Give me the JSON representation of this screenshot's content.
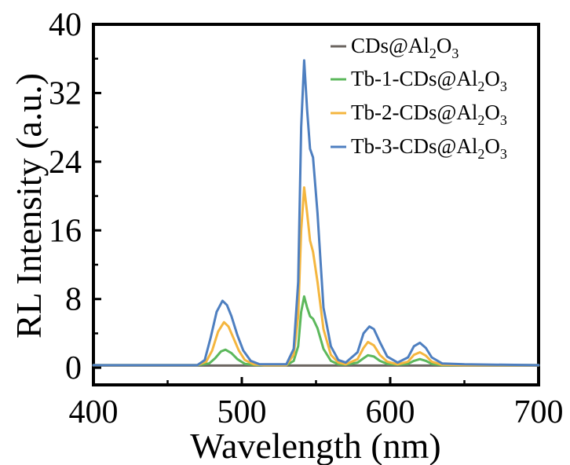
{
  "chart_data": {
    "type": "line",
    "xlabel": "Wavelength (nm)",
    "ylabel": "RL Intensity (a.u.)",
    "xlim": [
      400,
      700
    ],
    "ylim": [
      -2,
      40
    ],
    "xticks": [
      400,
      500,
      600,
      700
    ],
    "yticks": [
      0,
      8,
      16,
      24,
      32,
      40
    ],
    "xtick_labels": [
      "400",
      "500",
      "600",
      "700"
    ],
    "ytick_labels": [
      "0",
      "8",
      "16",
      "24",
      "32",
      "40"
    ],
    "grid": false,
    "legend_position": "top-right",
    "series": [
      {
        "name": "CDs@Al2O3",
        "legend": {
          "base": "CDs@Al",
          "sub1": "2",
          "mid": "O",
          "sub2": "3"
        },
        "color": "#6b6560",
        "x": [
          400,
          420,
          440,
          460,
          480,
          500,
          520,
          540,
          560,
          580,
          600,
          620,
          640,
          660,
          680,
          700
        ],
        "y": [
          0.25,
          0.25,
          0.25,
          0.25,
          0.25,
          0.25,
          0.25,
          0.25,
          0.25,
          0.25,
          0.25,
          0.25,
          0.25,
          0.25,
          0.25,
          0.25
        ]
      },
      {
        "name": "Tb-1-CDs@Al2O3",
        "legend": {
          "base": "Tb-1-CDs@Al",
          "sub1": "2",
          "mid": "O",
          "sub2": "3"
        },
        "color": "#5cb85c",
        "x": [
          400,
          470,
          478,
          482,
          486,
          489,
          493,
          497,
          502,
          510,
          530,
          535,
          538,
          540,
          542,
          544,
          546,
          548,
          551,
          555,
          560,
          565,
          570,
          578,
          582,
          585,
          589,
          593,
          598,
          605,
          612,
          616,
          620,
          624,
          628,
          635,
          650,
          700
        ],
        "y": [
          0.3,
          0.3,
          0.5,
          1.1,
          1.9,
          2.1,
          1.7,
          1.0,
          0.45,
          0.3,
          0.3,
          0.8,
          2.5,
          6.5,
          8.3,
          7.0,
          6.0,
          5.7,
          4.6,
          2.2,
          0.8,
          0.4,
          0.35,
          0.6,
          1.1,
          1.45,
          1.3,
          0.8,
          0.45,
          0.35,
          0.45,
          0.8,
          1.0,
          0.8,
          0.45,
          0.3,
          0.3,
          0.3
        ]
      },
      {
        "name": "Tb-2-CDs@Al2O3",
        "legend": {
          "base": "Tb-2-CDs@Al",
          "sub1": "2",
          "mid": "O",
          "sub2": "3"
        },
        "color": "#f4b63f",
        "x": [
          400,
          470,
          476,
          480,
          484,
          488,
          491,
          494,
          498,
          502,
          508,
          515,
          530,
          535,
          538,
          540,
          542,
          544,
          546,
          548,
          551,
          555,
          560,
          565,
          570,
          578,
          582,
          585,
          589,
          593,
          598,
          605,
          612,
          616,
          620,
          624,
          628,
          635,
          650,
          700
        ],
        "y": [
          0.3,
          0.3,
          0.7,
          2.0,
          4.2,
          5.3,
          4.8,
          3.6,
          2.0,
          0.9,
          0.4,
          0.3,
          0.3,
          1.5,
          6.0,
          16.0,
          21.0,
          18.0,
          14.8,
          13.5,
          10.0,
          4.5,
          1.5,
          0.6,
          0.4,
          1.0,
          2.3,
          3.0,
          2.6,
          1.5,
          0.7,
          0.4,
          0.7,
          1.5,
          1.8,
          1.4,
          0.7,
          0.35,
          0.3,
          0.3
        ]
      },
      {
        "name": "Tb-3-CDs@Al2O3",
        "legend": {
          "base": "Tb-3-CDs@Al",
          "sub1": "2",
          "mid": "O",
          "sub2": "3"
        },
        "color": "#4e7fc0",
        "x": [
          400,
          470,
          475,
          479,
          483,
          487,
          490,
          493,
          497,
          501,
          506,
          512,
          530,
          535,
          538,
          540,
          542,
          544,
          546,
          548,
          551,
          555,
          560,
          565,
          570,
          578,
          582,
          586,
          589,
          593,
          598,
          605,
          612,
          616,
          620,
          624,
          628,
          635,
          650,
          700
        ],
        "y": [
          0.3,
          0.3,
          0.9,
          3.5,
          6.5,
          7.8,
          7.3,
          6.0,
          3.8,
          2.0,
          0.8,
          0.4,
          0.4,
          2.2,
          10.0,
          28.0,
          35.8,
          30.0,
          25.5,
          24.5,
          18.0,
          7.0,
          2.5,
          0.9,
          0.6,
          1.8,
          4.0,
          4.8,
          4.5,
          3.0,
          1.3,
          0.6,
          1.2,
          2.5,
          2.9,
          2.3,
          1.2,
          0.5,
          0.4,
          0.3
        ]
      }
    ]
  }
}
